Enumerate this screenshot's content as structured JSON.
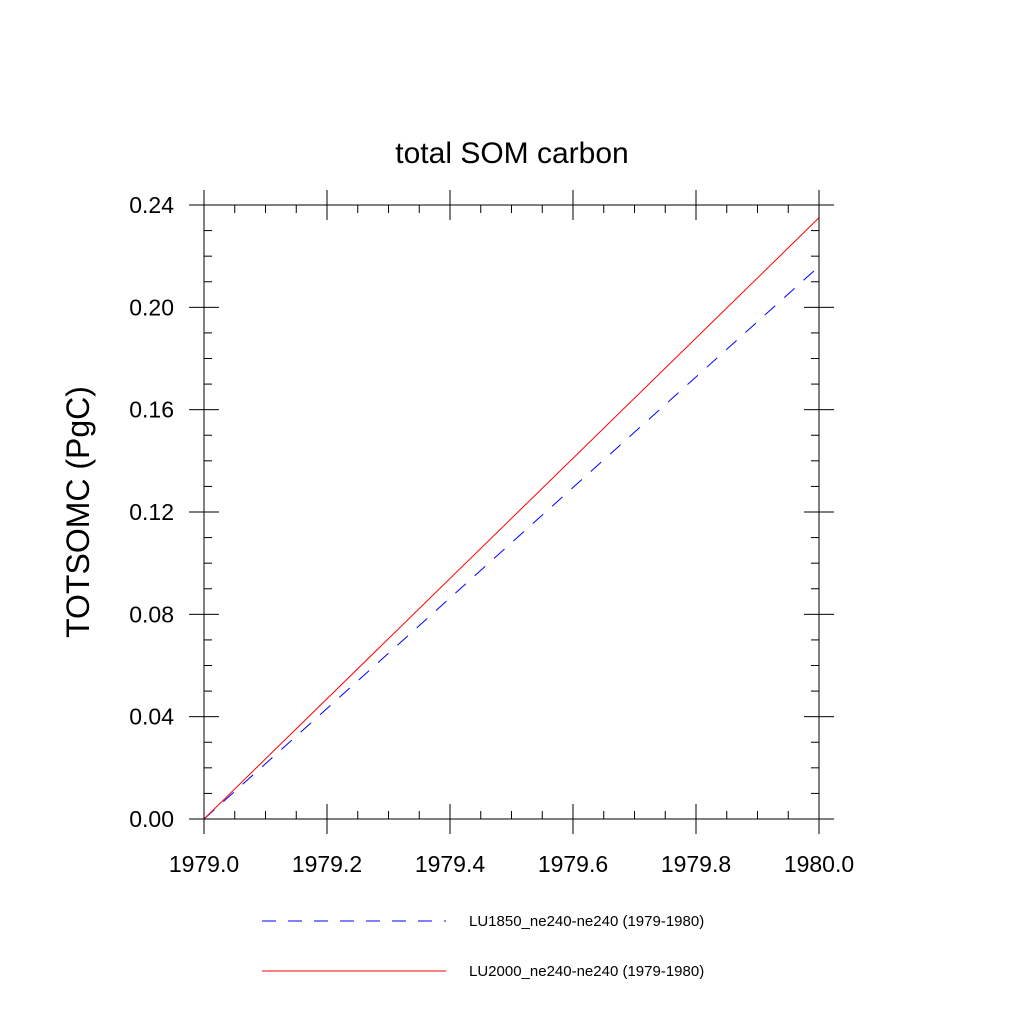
{
  "chart_data": {
    "type": "line",
    "title": "total SOM carbon",
    "xlabel": "",
    "ylabel": "TOTSOMC  (PgC)",
    "xlim": [
      1979.0,
      1980.0
    ],
    "ylim": [
      0.0,
      0.24
    ],
    "x_ticks": [
      "1979.0",
      "1979.2",
      "1979.4",
      "1979.6",
      "1979.8",
      "1980.0"
    ],
    "y_ticks": [
      "0.00",
      "0.04",
      "0.08",
      "0.12",
      "0.16",
      "0.20",
      "0.24"
    ],
    "grid": false,
    "legend_position": "bottom",
    "series": [
      {
        "name": "LU1850_ne240-ne240 (1979-1980)",
        "color": "#0000ff",
        "line_style": "dashed",
        "x": [
          1979.0,
          1980.0
        ],
        "y": [
          0.0,
          0.216
        ]
      },
      {
        "name": "LU2000_ne240-ne240 (1979-1980)",
        "color": "#ff0000",
        "line_style": "solid",
        "x": [
          1979.0,
          1980.0
        ],
        "y": [
          0.0,
          0.235
        ]
      }
    ]
  }
}
